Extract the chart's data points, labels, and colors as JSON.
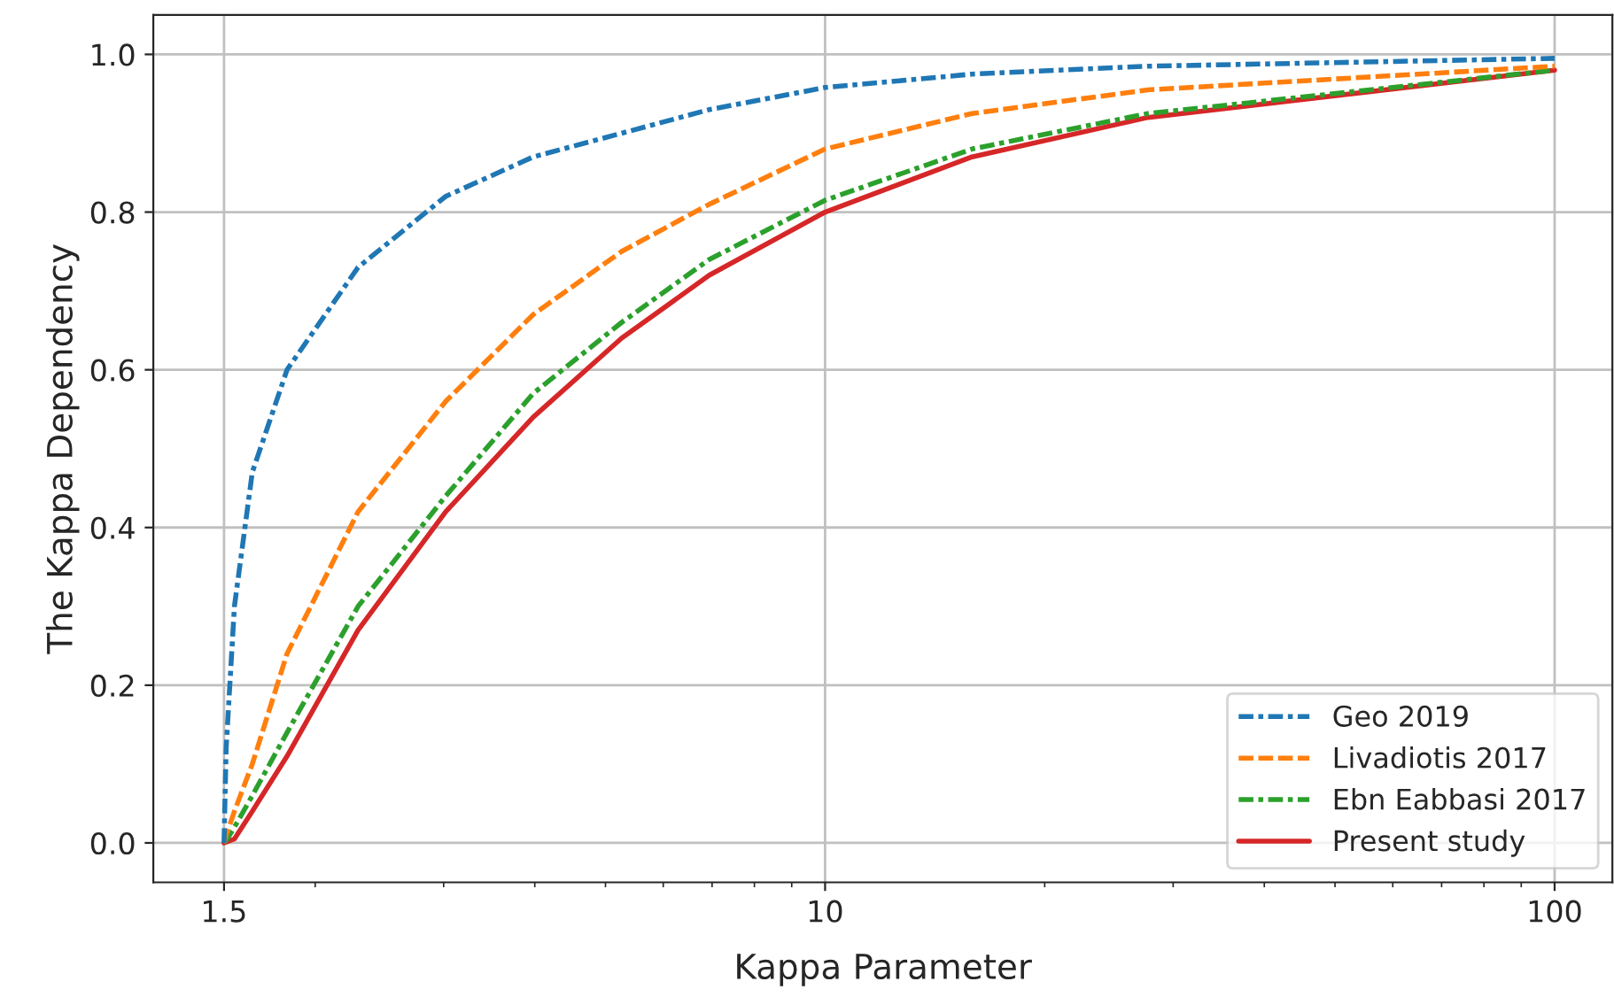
{
  "chart_data": {
    "type": "line",
    "xlabel": "Kappa Parameter",
    "ylabel": "The Kappa Dependency",
    "log": "x",
    "grid": true,
    "legend": "bottom right",
    "xlim": [
      1.2,
      120
    ],
    "ylim": [
      -0.05,
      1.05
    ],
    "xticks": [
      1.5,
      10,
      100
    ],
    "yticks": [
      {
        "value": 0,
        "label": "0.0"
      },
      {
        "value": 0.2,
        "label": "0.2"
      },
      {
        "value": 0.4,
        "label": "0.4"
      },
      {
        "value": 0.6,
        "label": "0.6"
      },
      {
        "value": 0.8,
        "label": "0.8"
      },
      {
        "value": 1,
        "label": "1.0"
      }
    ],
    "x": [
      1.5,
      1.51,
      1.55,
      1.64,
      1.83,
      2.29,
      3.02,
      3.98,
      5.26,
      6.94,
      10,
      15.9,
      27.7,
      100
    ],
    "series": [
      {
        "name": "Geo 2019",
        "color": "#1f77b4",
        "line_style": "dashdot",
        "values": [
          0,
          0.12,
          0.3,
          0.47,
          0.6,
          0.73,
          0.82,
          0.87,
          0.9,
          0.93,
          0.958,
          0.975,
          0.985,
          0.995
        ]
      },
      {
        "name": "Livadiotis 2017",
        "color": "#ff7f0e",
        "line_style": "dashed",
        "values": [
          0,
          0.01,
          0.04,
          0.1,
          0.24,
          0.42,
          0.56,
          0.67,
          0.75,
          0.81,
          0.88,
          0.925,
          0.955,
          0.985
        ]
      },
      {
        "name": "Ebn Eabbasi 2017",
        "color": "#2ca02c",
        "line_style": "dashdot",
        "values": [
          0,
          0.003,
          0.02,
          0.06,
          0.14,
          0.3,
          0.44,
          0.57,
          0.66,
          0.74,
          0.815,
          0.88,
          0.925,
          0.98
        ]
      },
      {
        "name": "Present study",
        "color": "#d62728",
        "line_style": "solid",
        "values": [
          0,
          0.001,
          0.005,
          0.04,
          0.11,
          0.27,
          0.42,
          0.54,
          0.64,
          0.72,
          0.8,
          0.87,
          0.92,
          0.98
        ]
      }
    ]
  }
}
